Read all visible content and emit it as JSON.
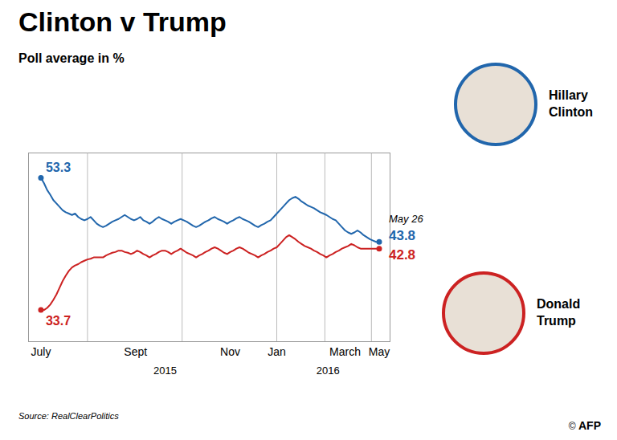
{
  "chart_data": {
    "type": "line",
    "title": "Clinton v Trump",
    "subtitle": "Poll average in %",
    "source": "Source: RealClearPolitics",
    "credit": "© AFP",
    "x": [
      0,
      2,
      4,
      6,
      8,
      10,
      12,
      14,
      16,
      18,
      20,
      22,
      24,
      26,
      28,
      30,
      32,
      34,
      36,
      38,
      40,
      42,
      44,
      46,
      48,
      50,
      52,
      54,
      56,
      58,
      60,
      62,
      64,
      66,
      68,
      70,
      72,
      74,
      76,
      78,
      80,
      82,
      84,
      86,
      88,
      90,
      92,
      94,
      96,
      98,
      100,
      102,
      104,
      106,
      108,
      110,
      112,
      114,
      116,
      118,
      120,
      122,
      124,
      126,
      128,
      130,
      132,
      134,
      136,
      138,
      140,
      142,
      144,
      146,
      148,
      150,
      152,
      154,
      156,
      158,
      160,
      162,
      164,
      166,
      168,
      170,
      172,
      174,
      176,
      178,
      180,
      182,
      184,
      186,
      188,
      190,
      192,
      194,
      196,
      198,
      200,
      202,
      204,
      206,
      208,
      210,
      212,
      214,
      216,
      218
    ],
    "series": [
      {
        "name": "Hillary Clinton",
        "color": "#2166ac",
        "marker": "o",
        "values": [
          53.3,
          52.5,
          51.5,
          50.8,
          50.0,
          49.5,
          49.0,
          48.5,
          48.2,
          48.0,
          47.8,
          48.0,
          47.5,
          47.2,
          47.0,
          47.2,
          47.5,
          47.0,
          46.5,
          46.2,
          46.0,
          46.2,
          46.5,
          46.8,
          47.0,
          47.2,
          47.5,
          47.8,
          47.5,
          47.2,
          47.0,
          47.2,
          47.5,
          47.0,
          46.8,
          46.5,
          46.8,
          47.2,
          47.5,
          47.2,
          47.0,
          46.8,
          46.5,
          46.8,
          47.0,
          47.2,
          47.0,
          46.8,
          46.5,
          46.2,
          46.0,
          46.2,
          46.5,
          46.8,
          47.0,
          47.3,
          47.5,
          47.2,
          47.0,
          46.8,
          46.5,
          46.8,
          47.0,
          47.3,
          47.5,
          47.2,
          47.0,
          46.8,
          46.5,
          46.2,
          46.0,
          46.3,
          46.5,
          46.8,
          47.0,
          47.5,
          48.0,
          48.5,
          49.0,
          49.5,
          50.0,
          50.3,
          50.5,
          50.2,
          49.8,
          49.5,
          49.2,
          49.0,
          48.8,
          48.5,
          48.2,
          48.0,
          47.8,
          47.5,
          47.2,
          47.0,
          46.5,
          46.0,
          45.5,
          45.2,
          45.0,
          45.2,
          45.5,
          45.2,
          44.8,
          44.5,
          44.2,
          44.0,
          43.8,
          43.8
        ]
      },
      {
        "name": "Donald Trump",
        "color": "#cc2222",
        "marker": "o",
        "values": [
          33.7,
          33.7,
          34.0,
          34.5,
          35.2,
          36.0,
          37.0,
          38.0,
          38.8,
          39.5,
          40.0,
          40.3,
          40.5,
          40.8,
          41.0,
          41.2,
          41.3,
          41.5,
          41.5,
          41.5,
          41.5,
          41.8,
          42.0,
          42.2,
          42.3,
          42.5,
          42.5,
          42.3,
          42.2,
          42.0,
          42.2,
          42.5,
          42.3,
          42.0,
          41.8,
          41.5,
          41.8,
          42.0,
          42.3,
          42.5,
          42.5,
          42.3,
          42.0,
          42.3,
          42.5,
          42.8,
          42.5,
          42.2,
          42.0,
          41.8,
          41.5,
          41.8,
          42.0,
          42.3,
          42.5,
          42.8,
          43.0,
          42.8,
          42.5,
          42.2,
          42.0,
          42.3,
          42.5,
          42.8,
          43.0,
          42.8,
          42.5,
          42.2,
          42.0,
          41.8,
          41.5,
          41.8,
          42.0,
          42.3,
          42.5,
          42.8,
          43.0,
          43.5,
          44.0,
          44.5,
          44.8,
          44.5,
          44.2,
          43.8,
          43.5,
          43.2,
          43.0,
          42.8,
          42.5,
          42.3,
          42.0,
          41.8,
          41.5,
          41.8,
          42.0,
          42.3,
          42.5,
          42.8,
          43.0,
          43.2,
          43.5,
          43.3,
          43.0,
          42.8,
          42.8,
          42.8,
          42.8,
          42.8,
          42.8,
          42.8
        ]
      }
    ],
    "xlim": [
      -8,
      225
    ],
    "ylim": [
      29,
      57
    ],
    "xticks": [
      {
        "value": 0,
        "label": "July"
      },
      {
        "value": 61,
        "label": "Sept"
      },
      {
        "value": 122,
        "label": "Nov"
      },
      {
        "value": 152,
        "label": "Jan"
      },
      {
        "value": 196,
        "label": "March"
      },
      {
        "value": 218,
        "label": "May"
      }
    ],
    "tick_labels": "x",
    "vlines": [
      30,
      91,
      152,
      183,
      213
    ],
    "annotations": [
      {
        "text": "2015",
        "x": 80
      },
      {
        "text": "2016",
        "x": 185
      },
      {
        "text": "53.3",
        "x": 0,
        "y": 53.3,
        "color": "#2166ac"
      },
      {
        "text": "33.7",
        "x": 0,
        "y": 33.7,
        "color": "#cc2222"
      },
      {
        "text": "May 26",
        "x": 218
      },
      {
        "text": "43.8",
        "x": 218,
        "y": 43.8,
        "color": "#2166ac"
      },
      {
        "text": "42.8",
        "x": 218,
        "y": 42.8,
        "color": "#cc2222"
      }
    ]
  }
}
